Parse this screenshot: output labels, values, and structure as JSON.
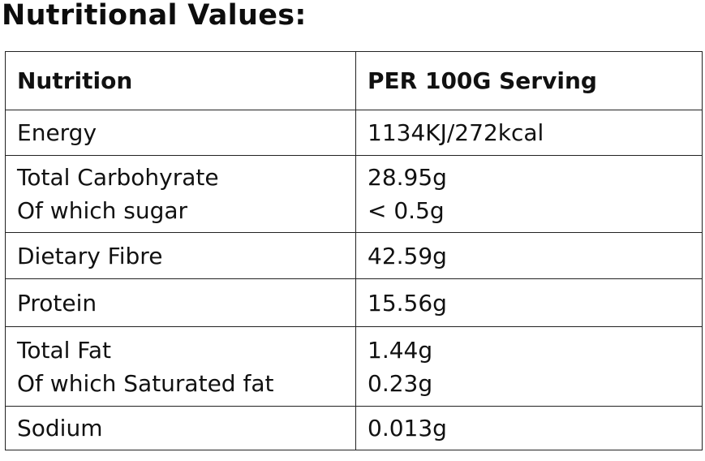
{
  "title": "Nutritional Values:",
  "table": {
    "headers": [
      "Nutrition",
      "PER 100G Serving"
    ],
    "rows": [
      {
        "labels": [
          "Energy"
        ],
        "values": [
          "1134KJ/272kcal"
        ]
      },
      {
        "labels": [
          "Total Carbohyrate",
          "Of which sugar"
        ],
        "values": [
          "28.95g",
          "< 0.5g"
        ]
      },
      {
        "labels": [
          "Dietary Fibre"
        ],
        "values": [
          "42.59g"
        ]
      },
      {
        "labels": [
          "Protein"
        ],
        "values": [
          "15.56g"
        ]
      },
      {
        "labels": [
          "Total Fat",
          "Of which Saturated fat"
        ],
        "values": [
          "1.44g",
          "0.23g"
        ]
      },
      {
        "labels": [
          "Sodium"
        ],
        "values": [
          "0.013g"
        ]
      }
    ]
  }
}
